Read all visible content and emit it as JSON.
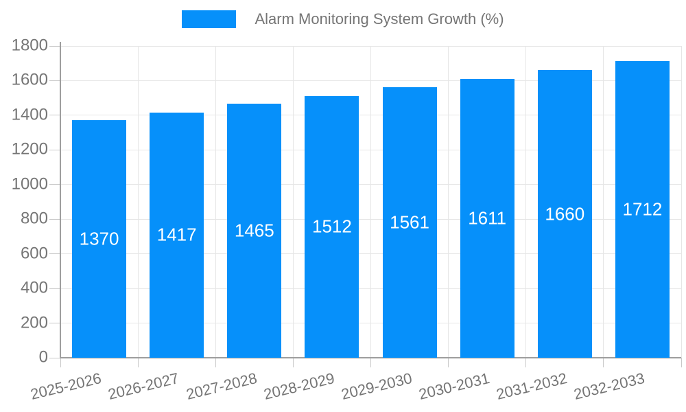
{
  "legend": {
    "label": "Alarm Monitoring System Growth (%)",
    "position": "top"
  },
  "colors": {
    "bar": "#0690FA",
    "grid": "#e6e6e6",
    "axis": "#9e9e9e",
    "tick": "#c9c9c9",
    "axis_label_text": "#757575",
    "legend_text": "#757575",
    "bar_value_text": "#ffffff",
    "background": "#ffffff"
  },
  "chart_data": {
    "type": "bar",
    "categories": [
      "2025-2026",
      "2026-2027",
      "2027-2028",
      "2028-2029",
      "2029-2030",
      "2030-2031",
      "2031-2032",
      "2032-2033"
    ],
    "series": [
      {
        "name": "Alarm Monitoring System Growth (%)",
        "values": [
          1370,
          1417,
          1465,
          1512,
          1561,
          1611,
          1660,
          1712
        ]
      }
    ],
    "xlabel": "",
    "ylabel": "",
    "ylim": [
      0,
      1800
    ],
    "ytick_interval": 200,
    "ytick_labels": [
      "0",
      "200",
      "400",
      "600",
      "800",
      "1000",
      "1200",
      "1400",
      "1600",
      "1800"
    ],
    "grid": true,
    "legend_position": "top",
    "value_label_position": "inside-center",
    "x_label_rotation_deg": -13.5
  }
}
